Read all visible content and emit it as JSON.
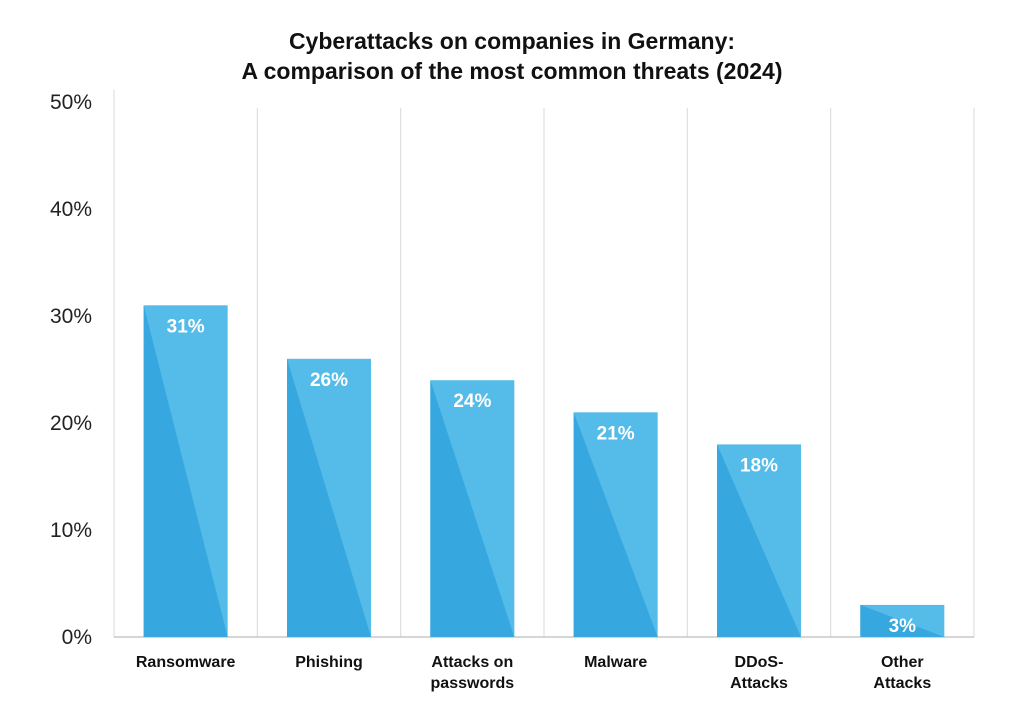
{
  "chart_data": {
    "type": "bar",
    "title_lines": [
      "Cyberattacks on companies in Germany:",
      "A comparison of the most common threats (2024)"
    ],
    "categories": [
      [
        "Ransomware"
      ],
      [
        "Phishing"
      ],
      [
        "Attacks on",
        "passwords"
      ],
      [
        "Malware"
      ],
      [
        "DDoS-",
        "Attacks"
      ],
      [
        "Other",
        "Attacks"
      ]
    ],
    "values": [
      31,
      26,
      24,
      21,
      18,
      3
    ],
    "data_labels": [
      "31%",
      "26%",
      "24%",
      "21%",
      "18%",
      "3%"
    ],
    "y_ticks": [
      "0%",
      "10%",
      "20%",
      "30%",
      "40%",
      "50%"
    ],
    "y_tick_values": [
      0,
      10,
      20,
      30,
      40,
      50
    ],
    "ylim": [
      0,
      50
    ],
    "xlabel": "",
    "ylabel": "",
    "grid": "vertical separators",
    "legend": "none",
    "colors": {
      "bar_light": "#55bbe8",
      "bar_dark": "#36a7df",
      "grid": "#d9d9d9",
      "axis": "#bdbdbd"
    }
  }
}
